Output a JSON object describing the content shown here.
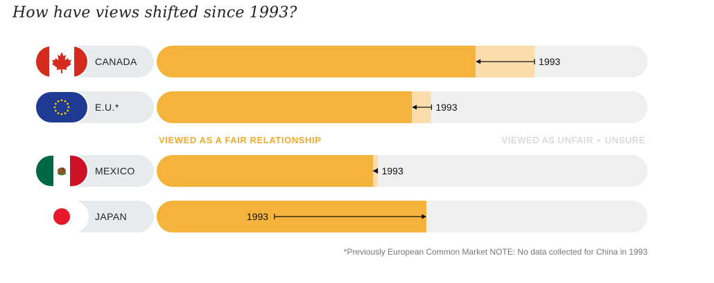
{
  "title": "How have views shifted since 1993?",
  "legend": {
    "fair": "VIEWED AS A FAIR RELATIONSHIP",
    "unfair": "VIEWED AS UNFAIR + UNSURE"
  },
  "footnote": "*Previously European Common Market  NOTE: No data collected for China in 1993",
  "colors": {
    "current": "#f6b33c",
    "change": "#fcdcab",
    "remainder": "#efefef"
  },
  "chart_data": {
    "type": "bar",
    "title": "How have views shifted since 1993?",
    "categories": [
      "CANADA",
      "E.U.*",
      "MEXICO",
      "JAPAN"
    ],
    "series": [
      {
        "name": "Current: viewed as a fair relationship (%)",
        "values": [
          65,
          52,
          44,
          55
        ]
      },
      {
        "name": "1993: viewed as a fair relationship (%)",
        "values": [
          77,
          56,
          45,
          24
        ]
      }
    ],
    "marker_label": "1993",
    "ylim": [
      0,
      100
    ],
    "legend": [
      "VIEWED AS A FAIR RELATIONSHIP",
      "VIEWED AS UNFAIR + UNSURE"
    ]
  }
}
